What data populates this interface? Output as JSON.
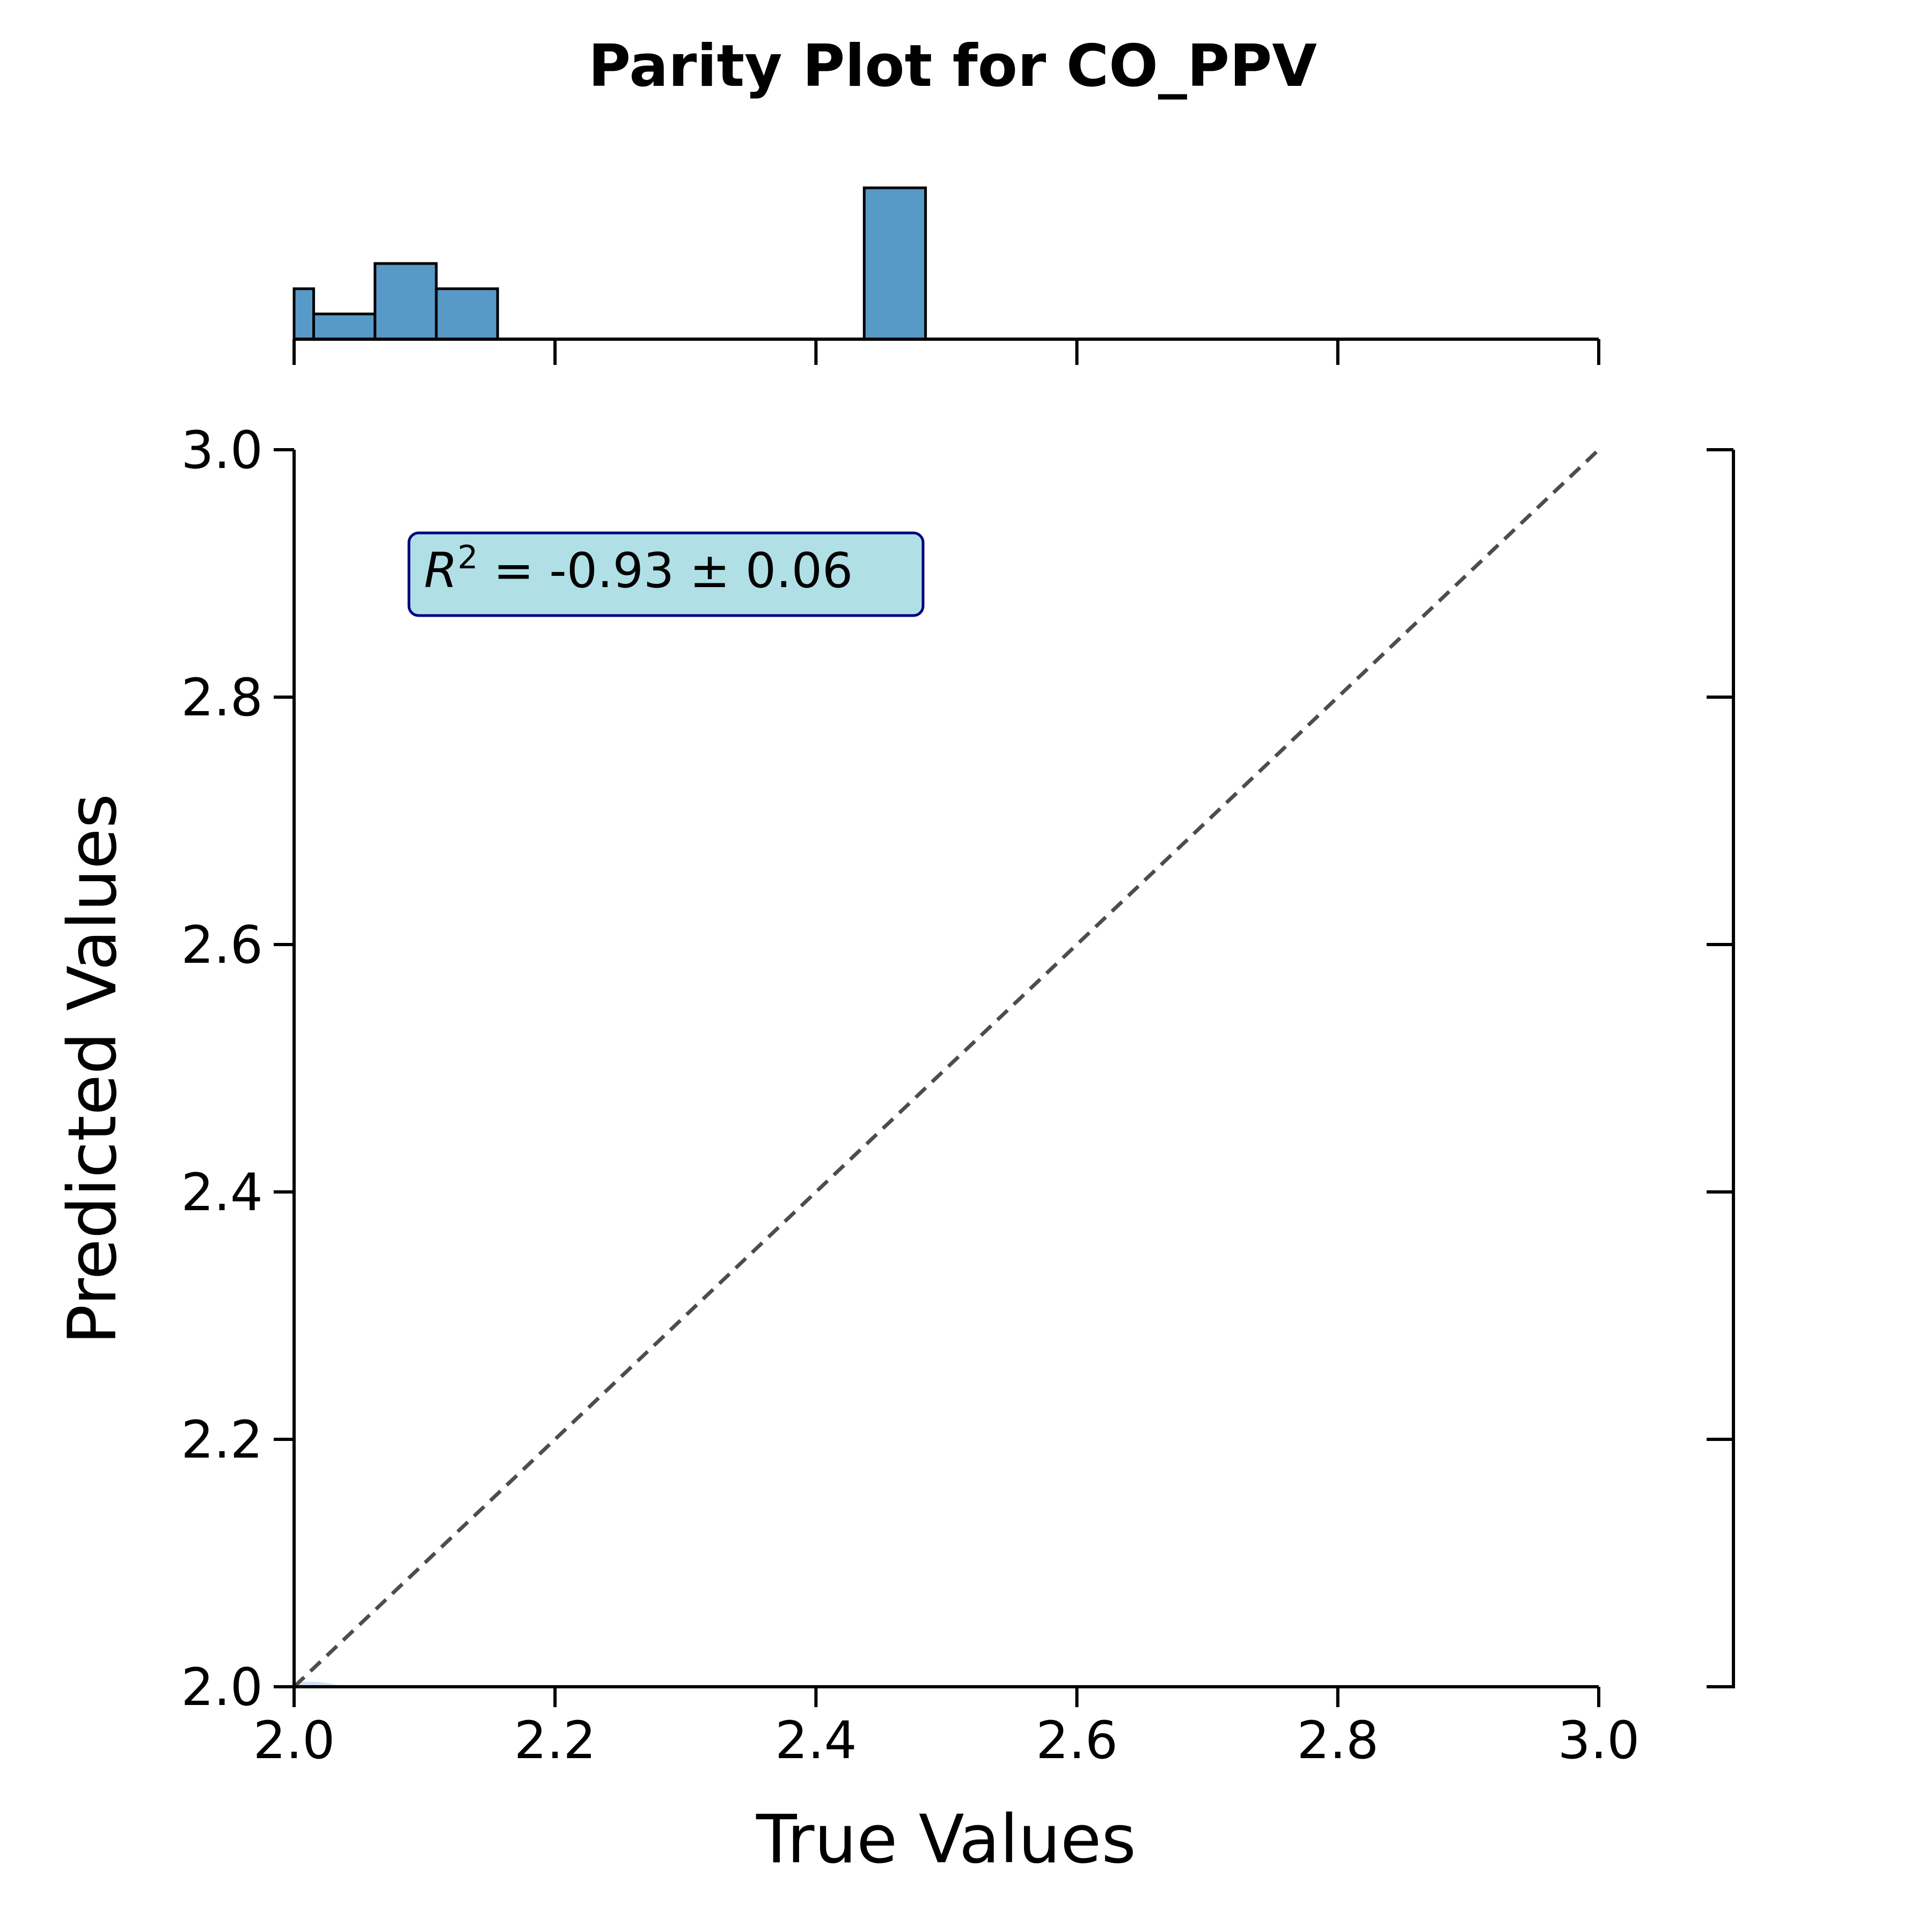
{
  "chart_data": {
    "type": "scatter",
    "title": "Parity Plot for CO_PPV",
    "xlabel": "True Values",
    "ylabel": "Predicted Values",
    "xlim": [
      2.0,
      3.0
    ],
    "ylim": [
      2.0,
      3.0
    ],
    "x_ticks": [
      "2.0",
      "2.2",
      "2.4",
      "2.6",
      "2.8",
      "3.0"
    ],
    "y_ticks": [
      "2.0",
      "2.2",
      "2.4",
      "2.6",
      "2.8",
      "3.0"
    ],
    "parity_line": {
      "from": [
        2.0,
        2.0
      ],
      "to": [
        3.0,
        3.0
      ],
      "style": "dashed",
      "color": "#4d4d4d"
    },
    "annotation": {
      "prefix": "R",
      "superscript": "2",
      "text": " = -0.93 ± 0.06"
    },
    "marginal_histogram": {
      "color": "#5799c7",
      "bins": [
        {
          "x0": 2.0,
          "x1": 2.015,
          "count": 2
        },
        {
          "x0": 2.015,
          "x1": 2.062,
          "count": 1
        },
        {
          "x0": 2.062,
          "x1": 2.109,
          "count": 3
        },
        {
          "x0": 2.109,
          "x1": 2.156,
          "count": 2
        },
        {
          "x0": 2.437,
          "x1": 2.484,
          "count": 6
        }
      ]
    },
    "grid": false,
    "colors": {
      "hist_fill": "#5799c7",
      "annotation_fill": "#b0e0e6",
      "annotation_border": "#000080",
      "parity_line": "#4d4d4d",
      "density": "#c6dbef"
    }
  }
}
